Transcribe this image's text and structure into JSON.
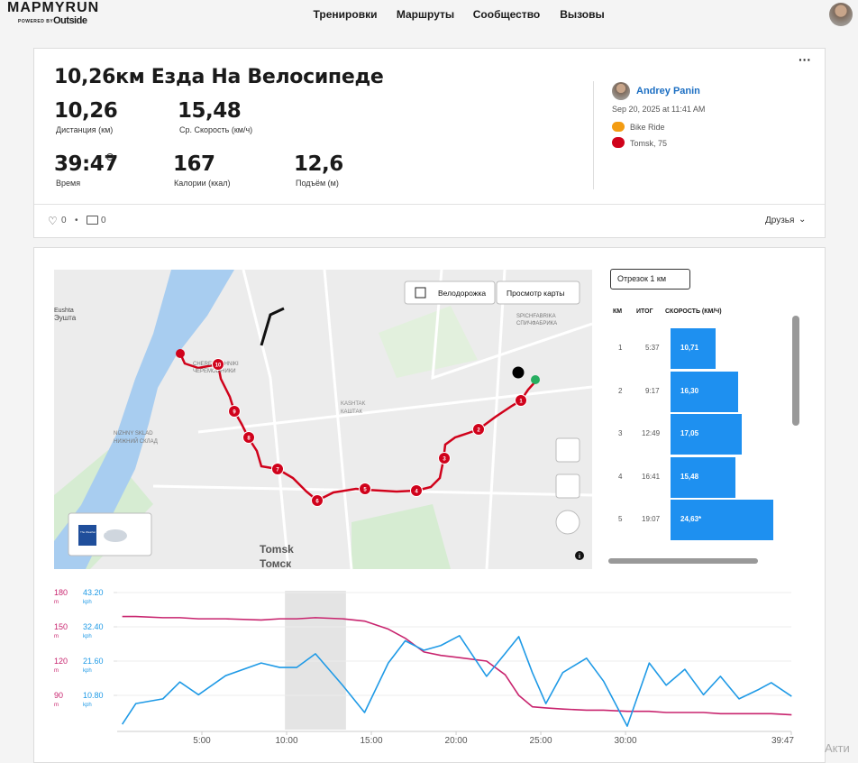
{
  "header": {
    "logo": "MAPMYRUN",
    "powered_by": "POWERED BY",
    "brand": "Outside",
    "nav": [
      "Тренировки",
      "Маршруты",
      "Сообщество",
      "Вызовы"
    ]
  },
  "workout": {
    "title": "10,26км Езда На Велосипеде",
    "stats": [
      {
        "value": "10,26",
        "label": "Дистанция (км)"
      },
      {
        "value": "15,48",
        "label": "Ср. Скорость (км/ч)"
      },
      {
        "value": "39:47",
        "label": "Время"
      },
      {
        "value": "167",
        "label": "Калории (ккал)"
      },
      {
        "value": "12,6",
        "label": "Подъём (м)"
      }
    ]
  },
  "user": {
    "name": "Andrey Panin",
    "date": "Sep 20, 2025 at 11:41 AM",
    "activity": "Bike Ride",
    "location": "Tomsk, 75"
  },
  "social": {
    "likes": "0",
    "separator": "•",
    "comments": "0",
    "privacy": "Друзья"
  },
  "map": {
    "bike_lane": "Велодорожка",
    "map_view": "Просмотр карты",
    "places": [
      "Eushta",
      "Эушта",
      "CHEREMOSHNIKI",
      "ЧЕРЕМОШНИКИ",
      "SPICHFABRIKA",
      "СПИЧФАБРИКА",
      "KASHTAK",
      "КАШТАК",
      "NIZHNY SKLAD",
      "НИЖНИЙ СКЛАД",
      "Tomsk",
      "Томск"
    ],
    "markers": [
      "1",
      "2",
      "3",
      "4",
      "5",
      "6",
      "7",
      "8",
      "9",
      "10"
    ],
    "weather": "The Weather Channel",
    "info": "i"
  },
  "splits": {
    "selector": "Отрезок 1 км",
    "headers": [
      "КМ",
      "ИТОГ",
      "СКОРОСТЬ (КМ/Ч)"
    ],
    "rows": [
      {
        "km": "1",
        "time": "5:37",
        "speed": 10.71,
        "speed_label": "10,71"
      },
      {
        "km": "2",
        "time": "9:17",
        "speed": 16.3,
        "speed_label": "16,30"
      },
      {
        "km": "3",
        "time": "12:49",
        "speed": 17.05,
        "speed_label": "17,05"
      },
      {
        "km": "4",
        "time": "16:41",
        "speed": 15.48,
        "speed_label": "15,48"
      },
      {
        "km": "5",
        "time": "19:07",
        "speed": 24.63,
        "speed_label": "24,63*"
      }
    ]
  },
  "chart": {
    "type": "line",
    "x": [
      0.3,
      1.1,
      2.7,
      3.7,
      4.8,
      6.4,
      8.5,
      9.6,
      10.6,
      11.7,
      13.3,
      14.6,
      16.0,
      17.0,
      18.1,
      19.1,
      20.2,
      21.8,
      22.9,
      23.7,
      24.5,
      25.3,
      26.3,
      27.7,
      28.7,
      30.1,
      31.4,
      32.4,
      33.5,
      34.6,
      35.6,
      36.7,
      37.8,
      38.6,
      39.8
    ],
    "xlim": [
      0,
      39.783
    ],
    "xticks": [
      {
        "value": 5,
        "label": "5:00"
      },
      {
        "value": 10,
        "label": "10:00"
      },
      {
        "value": 15,
        "label": "15:00"
      },
      {
        "value": 20,
        "label": "20:00"
      },
      {
        "value": 25,
        "label": "25:00"
      },
      {
        "value": 30,
        "label": "30:00"
      },
      {
        "value": 39.783,
        "label": "39:47"
      }
    ],
    "ylim": [
      60,
      180
    ],
    "yticks": [
      90,
      120,
      150,
      180
    ],
    "y_unit": "m",
    "y2lim": [
      0,
      43.2
    ],
    "y2ticks": [
      {
        "value": 10.8,
        "label": "10.80"
      },
      {
        "value": 21.6,
        "label": "21.60"
      },
      {
        "value": 32.4,
        "label": "32.40"
      },
      {
        "value": 43.2,
        "label": "43.20"
      }
    ],
    "y2_unit": "kph",
    "highlight": [
      9.9,
      13.5
    ],
    "grid": true,
    "series": [
      {
        "color": "#c8246e",
        "values": [
          159,
          159,
          158,
          158,
          157,
          157,
          156,
          157,
          157,
          158,
          157,
          155,
          148,
          140,
          128,
          125,
          123,
          120,
          108,
          90,
          80,
          79,
          78,
          77,
          77,
          76,
          76,
          75,
          75,
          75,
          74,
          74,
          74,
          74,
          73
        ]
      },
      {
        "color": "#1f9ae6",
        "axis": "y2",
        "values": [
          1.7,
          8.2,
          9.7,
          15,
          11,
          17,
          21,
          19.6,
          19.6,
          23.9,
          14,
          5.4,
          21,
          28,
          25,
          26.5,
          29.6,
          16.8,
          24,
          29.3,
          18,
          8.2,
          18,
          22.5,
          15.3,
          1.1,
          21,
          14,
          19,
          11,
          16.8,
          9.7,
          12.5,
          14.8,
          10.5
        ]
      }
    ]
  },
  "watermark": "Акти"
}
